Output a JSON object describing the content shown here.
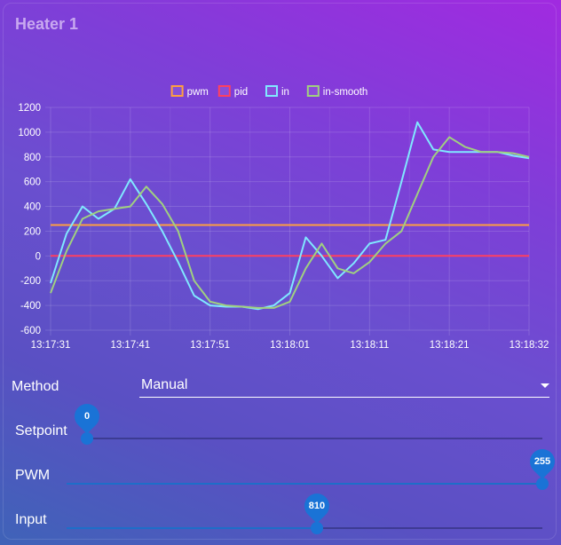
{
  "card": {
    "title": "Heater 1"
  },
  "chart_data": {
    "type": "line",
    "legend": [
      "pwm",
      "pid",
      "in",
      "in-smooth"
    ],
    "legend_position": "top",
    "colors": {
      "pwm": "#ff9f40",
      "pid": "#ff4060",
      "in": "#80e8ff",
      "in-smooth": "#a0d080"
    },
    "y_ticks": [
      "1200",
      "1000",
      "800",
      "600",
      "400",
      "200",
      "0",
      "-200",
      "-400",
      "-600"
    ],
    "ylim": [
      -600,
      1200
    ],
    "x_ticks": [
      "13:17:31",
      "13:17:41",
      "13:17:51",
      "13:18:01",
      "13:18:11",
      "13:18:21",
      "13:18:32"
    ],
    "xlim": [
      0,
      60
    ],
    "grid": true,
    "series": [
      {
        "name": "pwm",
        "x": [
          0,
          60
        ],
        "y": [
          250,
          250
        ]
      },
      {
        "name": "pid",
        "x": [
          0,
          60
        ],
        "y": [
          0,
          0
        ]
      },
      {
        "name": "in",
        "x": [
          0,
          2,
          4,
          6,
          8,
          10,
          12,
          14,
          16,
          18,
          20,
          22,
          24,
          26,
          28,
          30,
          32,
          34,
          36,
          38,
          40,
          42,
          44,
          46,
          48,
          50,
          52,
          54,
          56,
          58,
          60
        ],
        "y": [
          -220,
          180,
          400,
          300,
          380,
          620,
          420,
          200,
          -50,
          -320,
          -400,
          -410,
          -410,
          -430,
          -400,
          -300,
          150,
          0,
          -180,
          -60,
          100,
          130,
          600,
          1080,
          860,
          840,
          840,
          840,
          840,
          810,
          790
        ]
      },
      {
        "name": "in-smooth",
        "x": [
          0,
          2,
          4,
          6,
          8,
          10,
          12,
          14,
          16,
          18,
          20,
          22,
          24,
          26,
          28,
          30,
          32,
          34,
          36,
          38,
          40,
          42,
          44,
          46,
          48,
          50,
          52,
          54,
          56,
          58,
          60
        ],
        "y": [
          -300,
          40,
          300,
          360,
          380,
          400,
          560,
          420,
          200,
          -200,
          -370,
          -400,
          -410,
          -420,
          -420,
          -370,
          -100,
          100,
          -100,
          -140,
          -50,
          100,
          200,
          500,
          800,
          960,
          880,
          840,
          840,
          830,
          800
        ]
      }
    ]
  },
  "controls": {
    "method": {
      "label": "Method",
      "value": "Manual"
    },
    "setpoint": {
      "label": "Setpoint",
      "value": "0",
      "fraction": 0.0
    },
    "pwm": {
      "label": "PWM",
      "value": "255",
      "fraction": 1.0
    },
    "input": {
      "label": "Input",
      "value": "810",
      "fraction": 0.526
    }
  }
}
